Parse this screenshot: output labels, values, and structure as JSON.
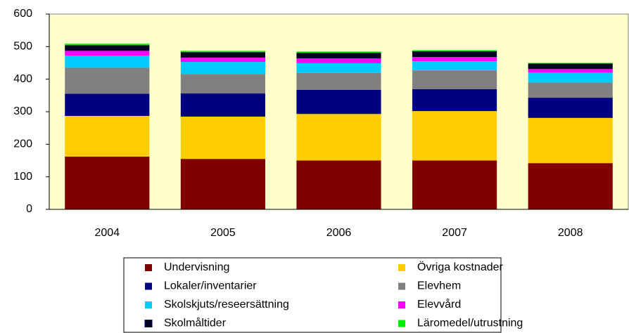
{
  "chart_data": {
    "type": "stacked_bar",
    "categories": [
      "2004",
      "2005",
      "2006",
      "2007",
      "2008"
    ],
    "series": [
      {
        "name": "Undervisning",
        "color": "#800000",
        "values": [
          162,
          155,
          150,
          150,
          142
        ]
      },
      {
        "name": "Övriga kostnader",
        "color": "#ffcc00",
        "values": [
          125,
          130,
          143,
          152,
          139
        ]
      },
      {
        "name": "Lokaler/inventarier",
        "color": "#000080",
        "values": [
          68,
          71,
          74,
          67,
          62
        ]
      },
      {
        "name": "Elevhem",
        "color": "#808080",
        "values": [
          80,
          60,
          52,
          58,
          47
        ]
      },
      {
        "name": "Skolskjuts/reseersättning",
        "color": "#00ccff",
        "values": [
          37,
          37,
          30,
          28,
          30
        ]
      },
      {
        "name": "Elevvård",
        "color": "#ff00ff",
        "values": [
          15,
          13,
          15,
          13,
          11
        ]
      },
      {
        "name": "Skolmåltider",
        "color": "#000022",
        "values": [
          17,
          17,
          17,
          18,
          17
        ]
      },
      {
        "name": "Läromedel/utrustning",
        "color": "#00ee00",
        "values": [
          5,
          4,
          4,
          3,
          2
        ]
      }
    ],
    "ylim": [
      0,
      600
    ],
    "yticks": [
      0,
      100,
      200,
      300,
      400,
      500,
      600
    ],
    "plot_background": "#ffffcc",
    "legend": "bottom"
  }
}
